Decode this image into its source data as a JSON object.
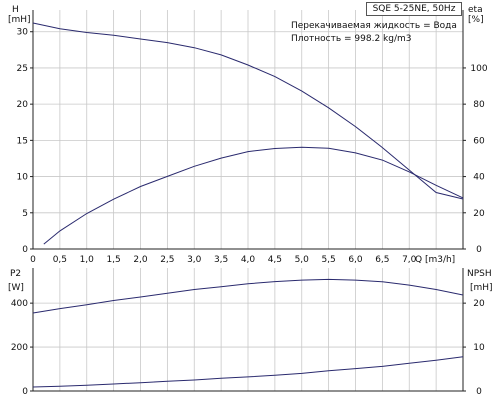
{
  "title": "SQE 5-25NE, 50Hz",
  "info": {
    "liquid": "Перекачиваемая жидкость = Вода",
    "density": "Плотность = 998.2 kg/m3"
  },
  "colors": {
    "curve": "#2a2a6e",
    "grid": "#c8c8c8",
    "axis": "#222222"
  },
  "chart_data": [
    {
      "type": "line",
      "xlabel": "Q [m3/h]",
      "x_ticks": [
        "0",
        "0,5",
        "1,0",
        "1,5",
        "2,0",
        "2,5",
        "3,0",
        "3,5",
        "4,0",
        "4,5",
        "5,0",
        "5,5",
        "6,0",
        "6,5",
        "7,0"
      ],
      "xlim": [
        0,
        8
      ],
      "y_left": {
        "label_top": "H",
        "label_unit": "[mH]",
        "ticks": [
          "0",
          "5",
          "10",
          "15",
          "20",
          "25",
          "30"
        ],
        "ylim": [
          0,
          33
        ]
      },
      "y_right": {
        "label_top": "eta",
        "label_unit": "[%]",
        "ticks": [
          "0",
          "20",
          "40",
          "60",
          "80",
          "100"
        ],
        "ylim": [
          0,
          132
        ]
      },
      "grid": true,
      "series": [
        {
          "name": "H",
          "axis": "left",
          "x": [
            0,
            0.5,
            1.0,
            1.5,
            2.0,
            2.5,
            3.0,
            3.5,
            4.0,
            4.5,
            5.0,
            5.5,
            6.0,
            6.5,
            7.0,
            7.5,
            8.0
          ],
          "y": [
            31.2,
            30.4,
            29.9,
            29.5,
            29.0,
            28.5,
            27.8,
            26.8,
            25.4,
            23.8,
            21.8,
            19.5,
            16.9,
            14.0,
            10.9,
            7.8,
            6.9
          ]
        },
        {
          "name": "eta",
          "axis": "right",
          "x": [
            0.2,
            0.5,
            1.0,
            1.5,
            2.0,
            2.5,
            3.0,
            3.5,
            4.0,
            4.5,
            5.0,
            5.5,
            6.0,
            6.5,
            7.0,
            7.5,
            8.0
          ],
          "y": [
            2.7,
            10,
            19.6,
            27.5,
            34.5,
            40.1,
            45.7,
            50.2,
            53.8,
            55.5,
            56.2,
            55.6,
            53.1,
            49.1,
            42.6,
            35.2,
            28.2
          ]
        }
      ]
    },
    {
      "type": "line",
      "xlabel": "",
      "xlim": [
        0,
        8
      ],
      "y_left": {
        "label_top": "P2",
        "label_unit": "[W]",
        "ticks": [
          "0",
          "200",
          "400"
        ],
        "ylim": [
          0,
          560
        ]
      },
      "y_right": {
        "label_top": "NPSH",
        "label_unit": "[mH]",
        "ticks": [
          "0",
          "10",
          "20"
        ],
        "ylim": [
          0,
          28
        ]
      },
      "grid": true,
      "series": [
        {
          "name": "P2",
          "axis": "left",
          "x": [
            0,
            0.5,
            1.0,
            1.5,
            2.0,
            2.5,
            3.0,
            3.5,
            4.0,
            4.5,
            5.0,
            5.5,
            6.0,
            6.5,
            7.0,
            7.5,
            8.0
          ],
          "y": [
            355,
            375,
            393,
            412,
            428,
            445,
            462,
            475,
            488,
            498,
            505,
            508,
            505,
            497,
            482,
            462,
            437
          ]
        },
        {
          "name": "NPSH",
          "axis": "right",
          "x": [
            0,
            0.5,
            1.0,
            1.5,
            2.0,
            2.5,
            3.0,
            3.5,
            4.0,
            4.5,
            5.0,
            5.5,
            6.0,
            6.5,
            7.0,
            7.5,
            8.0
          ],
          "y": [
            0.9,
            1.1,
            1.3,
            1.6,
            1.9,
            2.2,
            2.5,
            2.9,
            3.2,
            3.6,
            4.0,
            4.6,
            5.1,
            5.6,
            6.3,
            7.0,
            7.8
          ]
        }
      ]
    }
  ]
}
